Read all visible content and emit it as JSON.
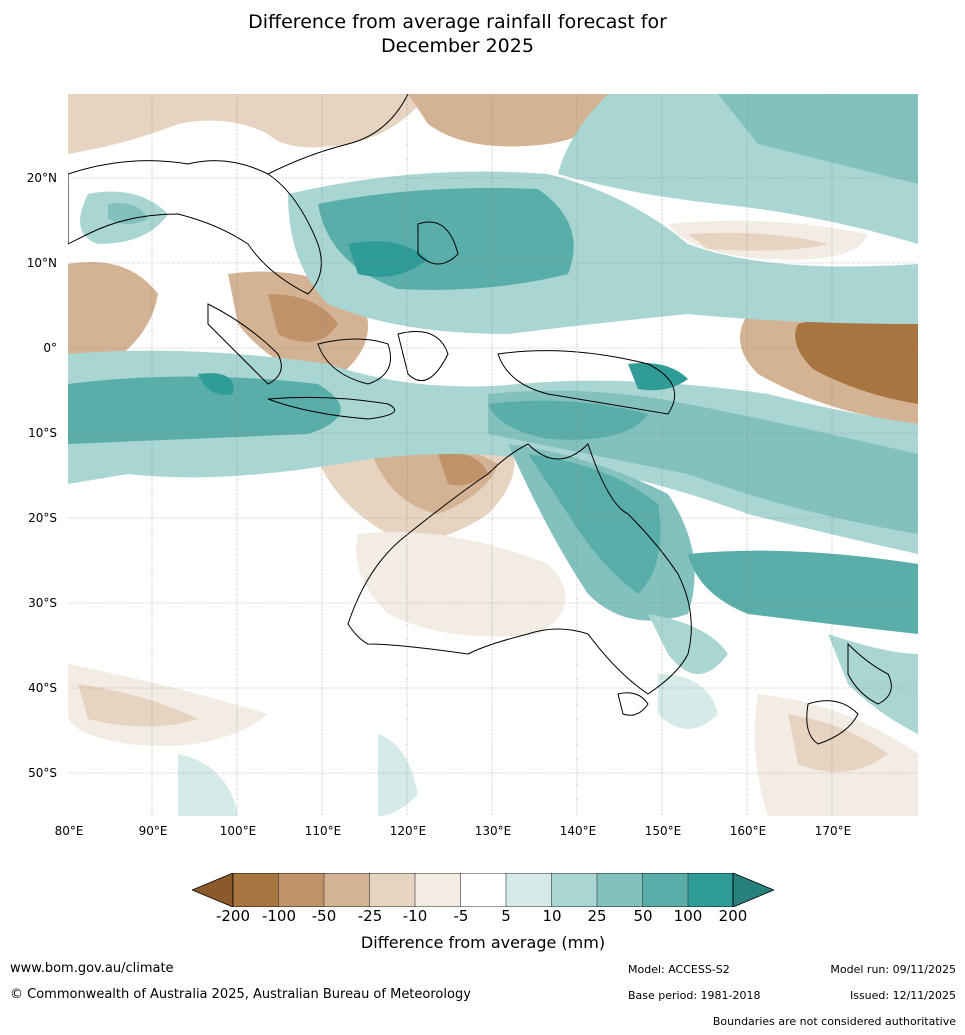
{
  "title": {
    "line1": "Difference from average rainfall forecast for",
    "line2": "December 2025"
  },
  "map": {
    "region": "Indian Ocean, Maritime Continent, Australia and South-West Pacific",
    "lat_labels": [
      "20°N",
      "10°N",
      "0°",
      "10°S",
      "20°S",
      "30°S",
      "40°S",
      "50°S"
    ],
    "lon_labels": [
      "80°E",
      "90°E",
      "100°E",
      "110°E",
      "120°E",
      "130°E",
      "140°E",
      "150°E",
      "160°E",
      "170°E"
    ]
  },
  "colorbar": {
    "label": "Difference from average (mm)",
    "ticks": [
      "-200",
      "-100",
      "-50",
      "-25",
      "-10",
      "-5",
      "5",
      "10",
      "25",
      "50",
      "100",
      "200"
    ],
    "colors": [
      "#8c5a2a",
      "#a87440",
      "#c0926a",
      "#d4b294",
      "#e6d3c0",
      "#f3ece5",
      "#ffffff",
      "#d5ebe9",
      "#a9d6d3",
      "#82c1be",
      "#5aaeaa",
      "#309c98",
      "#27807c"
    ]
  },
  "footer": {
    "website": "www.bom.gov.au/climate",
    "copyright": "© Commonwealth of Australia 2025, Australian Bureau of Meteorology",
    "model": "Model: ACCESS-S2",
    "base_period": "Base period: 1981-2018",
    "model_run": "Model run: 09/11/2025",
    "issued": "Issued: 12/11/2025",
    "disclaimer": "Boundaries are not considered authoritative"
  }
}
